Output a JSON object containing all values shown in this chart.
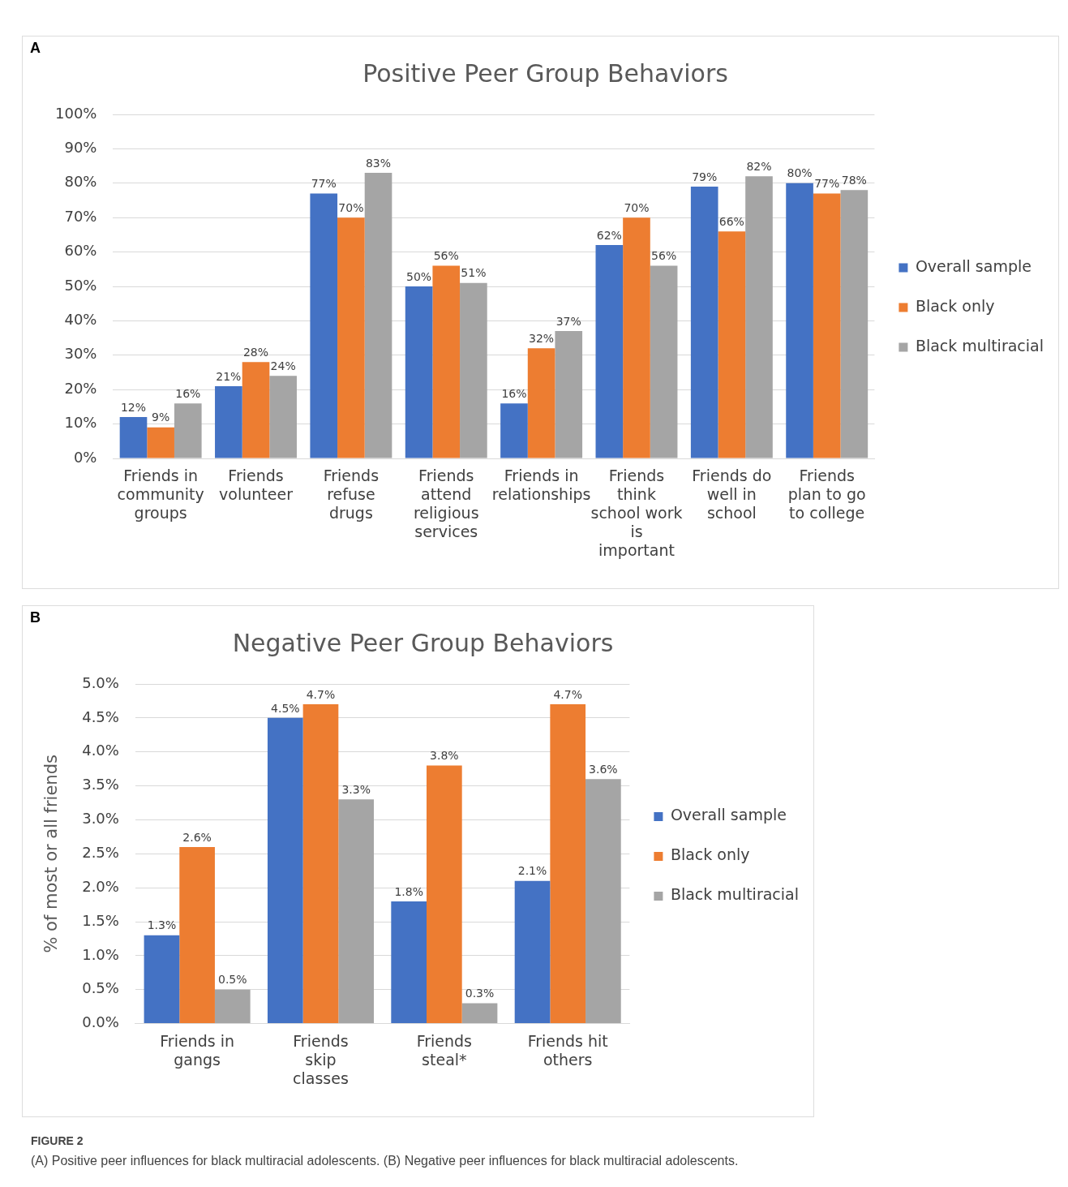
{
  "chart_data": [
    {
      "type": "bar",
      "title": "Positive Peer Group Behaviors",
      "categories": [
        "Friends in community groups",
        "Friends volunteer",
        "Friends refuse drugs",
        "Friends attend religious services",
        "Friends in relationships",
        "Friends think school work is important",
        "Friends do well in school",
        "Friends plan to go to college"
      ],
      "series": [
        {
          "name": "Overall sample",
          "color": "#4472c4",
          "values": [
            12,
            21,
            77,
            50,
            16,
            62,
            79,
            80
          ],
          "value_labels": [
            "12%",
            "21%",
            "77%",
            "50%",
            "16%",
            "62%",
            "79%",
            "80%"
          ]
        },
        {
          "name": "Black only",
          "color": "#ed7d31",
          "values": [
            9,
            28,
            70,
            56,
            32,
            70,
            66,
            77
          ],
          "value_labels": [
            "9%",
            "28%",
            "70%",
            "56%",
            "32%",
            "70%",
            "66%",
            "77%"
          ]
        },
        {
          "name": "Black multiracial",
          "color": "#a5a5a5",
          "values": [
            16,
            24,
            83,
            51,
            37,
            56,
            82,
            78
          ],
          "value_labels": [
            "16%",
            "24%",
            "83%",
            "51%",
            "37%",
            "56%",
            "82%",
            "78%"
          ]
        }
      ],
      "ylim": [
        0,
        100
      ],
      "yticks": [
        {
          "value": 0,
          "label": "0%"
        },
        {
          "value": 10,
          "label": "10%"
        },
        {
          "value": 20,
          "label": "20%"
        },
        {
          "value": 30,
          "label": "30%"
        },
        {
          "value": 40,
          "label": "40%"
        },
        {
          "value": 50,
          "label": "50%"
        },
        {
          "value": 60,
          "label": "60%"
        },
        {
          "value": 70,
          "label": "70%"
        },
        {
          "value": 80,
          "label": "80%"
        },
        {
          "value": 90,
          "label": "90%"
        },
        {
          "value": 100,
          "label": "100%"
        }
      ],
      "grid": "y",
      "legend": "right",
      "annotations": [
        "A"
      ]
    },
    {
      "type": "bar",
      "title": "Negative Peer Group Behaviors",
      "ylabel": "% of most or all friends",
      "categories": [
        "Friends in gangs",
        "Friends skip classes",
        "Friends steal*",
        "Friends hit others"
      ],
      "series": [
        {
          "name": "Overall sample",
          "color": "#4472c4",
          "values": [
            1.3,
            4.5,
            1.8,
            2.1
          ],
          "value_labels": [
            "1.3%",
            "4.5%",
            "1.8%",
            "2.1%"
          ]
        },
        {
          "name": "Black only",
          "color": "#ed7d31",
          "values": [
            2.6,
            4.7,
            3.8,
            4.7
          ],
          "value_labels": [
            "2.6%",
            "4.7%",
            "3.8%",
            "4.7%"
          ]
        },
        {
          "name": "Black multiracial",
          "color": "#a5a5a5",
          "values": [
            0.5,
            3.3,
            0.3,
            3.6
          ],
          "value_labels": [
            "0.5%",
            "3.3%",
            "0.3%",
            "3.6%"
          ]
        }
      ],
      "ylim": [
        0,
        5
      ],
      "yticks": [
        {
          "value": 0,
          "label": "0.0%"
        },
        {
          "value": 0.5,
          "label": "0.5%"
        },
        {
          "value": 1,
          "label": "1.0%"
        },
        {
          "value": 1.5,
          "label": "1.5%"
        },
        {
          "value": 2,
          "label": "2.0%"
        },
        {
          "value": 2.5,
          "label": "2.5%"
        },
        {
          "value": 3,
          "label": "3.0%"
        },
        {
          "value": 3.5,
          "label": "3.5%"
        },
        {
          "value": 4,
          "label": "4.0%"
        },
        {
          "value": 4.5,
          "label": "4.5%"
        },
        {
          "value": 5,
          "label": "5.0%"
        }
      ],
      "grid": "y",
      "legend": "right",
      "annotations": [
        "B",
        "FIGURE 2",
        "(A) Positive peer influences for black multiracial adolescents. (B) Negative peer influences for black multiracial adolescents."
      ]
    }
  ]
}
